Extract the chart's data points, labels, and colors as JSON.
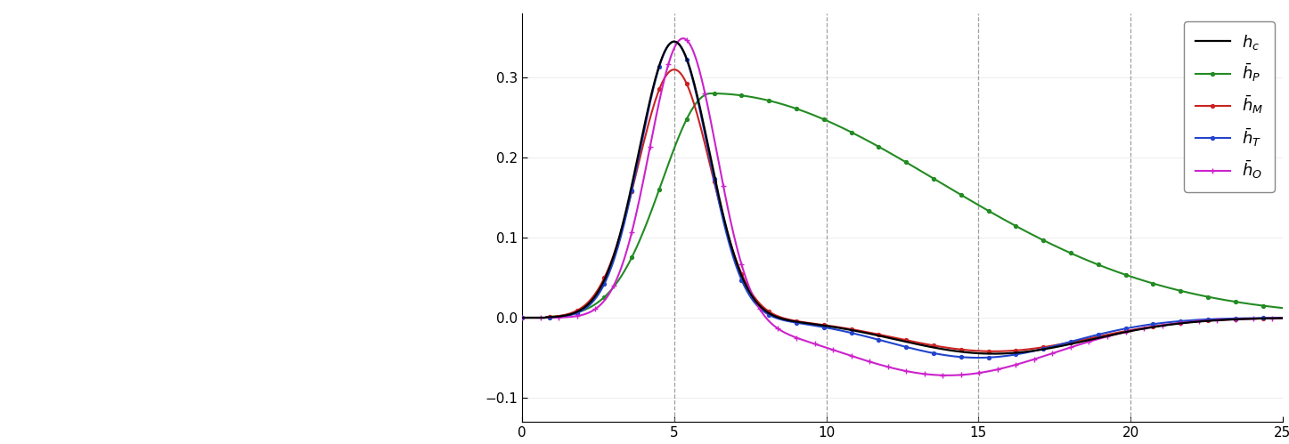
{
  "x_range": [
    0,
    25
  ],
  "y_range": [
    -0.13,
    0.38
  ],
  "x_ticks": [
    0,
    5,
    10,
    15,
    20,
    25
  ],
  "y_ticks": [
    -0.1,
    0.0,
    0.1,
    0.2,
    0.3
  ],
  "dashed_vlines": [
    5,
    10,
    15,
    20
  ],
  "line_colors": [
    "black",
    "#228B22",
    "#CC2222",
    "#2244CC",
    "#CC22CC"
  ],
  "figsize": [
    14.47,
    4.99
  ],
  "dpi": 100
}
